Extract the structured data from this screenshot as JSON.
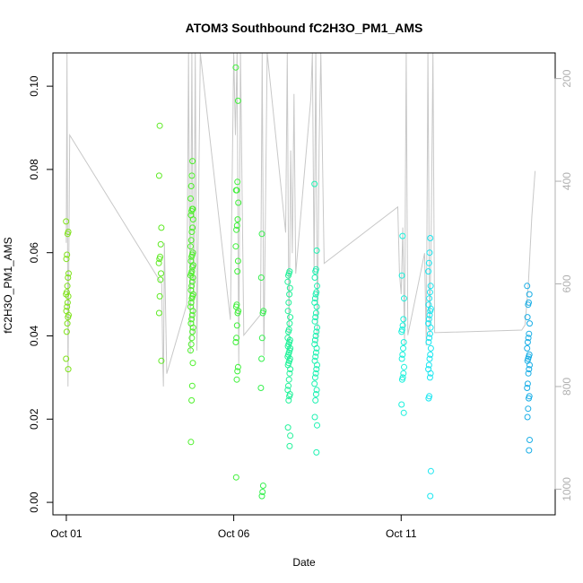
{
  "chart_data": {
    "type": "scatter",
    "title": "ATOM3 Southbound fC2H3O_PM1_AMS",
    "xlabel": "Date",
    "ylabel": "fC2H3O_PM1_AMS",
    "x_ticks": [
      {
        "label": "Oct 01",
        "day": 1
      },
      {
        "label": "Oct 06",
        "day": 6
      },
      {
        "label": "Oct 11",
        "day": 11
      }
    ],
    "y_ticks": [
      0.0,
      0.02,
      0.04,
      0.06,
      0.08,
      0.1
    ],
    "y_tick_labels": [
      "0.00",
      "0.02",
      "0.04",
      "0.06",
      "0.08",
      "0.10"
    ],
    "right_ticks": [
      200,
      400,
      600,
      800,
      1000
    ],
    "right_tick_labels": [
      "200",
      "400",
      "600",
      "800",
      "1000"
    ],
    "xlim": [
      0.6,
      15.6
    ],
    "ylim": [
      -0.003,
      0.108
    ],
    "right_lim": [
      1050,
      150
    ],
    "groups": [
      {
        "day": 1.03,
        "color": "#7fe21a",
        "values": [
          0.0675,
          0.065,
          0.0645,
          0.0595,
          0.0585,
          0.055,
          0.054,
          0.052,
          0.0505,
          0.05,
          0.0495,
          0.048,
          0.047,
          0.046,
          0.045,
          0.0445,
          0.043,
          0.041,
          0.0345,
          0.032
        ]
      },
      {
        "day": 3.8,
        "color": "#5fea24",
        "values": [
          0.0905,
          0.0785,
          0.066,
          0.062,
          0.059,
          0.0585,
          0.0575,
          0.055,
          0.0535,
          0.0495,
          0.0455,
          0.034
        ]
      },
      {
        "day": 4.75,
        "color": "#4ef02c",
        "values": [
          0.082,
          0.0785,
          0.076,
          0.073,
          0.0705,
          0.0705,
          0.07,
          0.069,
          0.068,
          0.066,
          0.065,
          0.063,
          0.0615,
          0.06,
          0.0595,
          0.059,
          0.058,
          0.057,
          0.0565,
          0.0555,
          0.055,
          0.0545,
          0.054,
          0.053,
          0.052,
          0.051,
          0.05,
          0.0495,
          0.049,
          0.048,
          0.047,
          0.046,
          0.045,
          0.044,
          0.043,
          0.042,
          0.041,
          0.0395,
          0.038,
          0.0365,
          0.0335,
          0.028,
          0.0245,
          0.0145
        ]
      },
      {
        "day": 6.1,
        "color": "#3ff03a",
        "values": [
          0.1045,
          0.0965,
          0.077,
          0.075,
          0.075,
          0.072,
          0.068,
          0.0665,
          0.0655,
          0.0615,
          0.058,
          0.0555,
          0.0475,
          0.047,
          0.046,
          0.0455,
          0.0425,
          0.0395,
          0.0385,
          0.0325,
          0.0315,
          0.0295,
          0.006
        ]
      },
      {
        "day": 6.85,
        "color": "#36f04e",
        "values": [
          0.0645,
          0.054,
          0.046,
          0.0455,
          0.0395,
          0.0345,
          0.0275,
          0.004,
          0.0025,
          0.0015
        ]
      },
      {
        "day": 7.65,
        "color": "#22f29a",
        "values": [
          0.0555,
          0.055,
          0.0545,
          0.053,
          0.0515,
          0.05,
          0.048,
          0.046,
          0.0445,
          0.043,
          0.0415,
          0.041,
          0.0395,
          0.039,
          0.0385,
          0.038,
          0.0375,
          0.037,
          0.0365,
          0.036,
          0.0355,
          0.035,
          0.0345,
          0.034,
          0.0335,
          0.033,
          0.032,
          0.031,
          0.0295,
          0.028,
          0.027,
          0.026,
          0.0255,
          0.0245,
          0.018,
          0.016,
          0.0135
        ]
      },
      {
        "day": 8.45,
        "color": "#1ef2b2",
        "values": [
          0.0765,
          0.0605,
          0.056,
          0.0555,
          0.054,
          0.052,
          0.0505,
          0.05,
          0.049,
          0.048,
          0.047,
          0.0455,
          0.0445,
          0.0435,
          0.042,
          0.041,
          0.04,
          0.039,
          0.038,
          0.037,
          0.036,
          0.035,
          0.034,
          0.033,
          0.032,
          0.031,
          0.03,
          0.0285,
          0.027,
          0.026,
          0.0245,
          0.0205,
          0.0185,
          0.012
        ]
      },
      {
        "day": 11.05,
        "color": "#1af0dc",
        "values": [
          0.064,
          0.0545,
          0.049,
          0.044,
          0.0425,
          0.0415,
          0.041,
          0.0385,
          0.037,
          0.0355,
          0.0345,
          0.0325,
          0.031,
          0.03,
          0.0295,
          0.0235,
          0.0215
        ]
      },
      {
        "day": 11.85,
        "color": "#1ae6f0",
        "values": [
          0.0635,
          0.06,
          0.0575,
          0.0555,
          0.052,
          0.0505,
          0.049,
          0.0475,
          0.0465,
          0.046,
          0.045,
          0.044,
          0.043,
          0.042,
          0.0405,
          0.0395,
          0.0385,
          0.037,
          0.0355,
          0.0345,
          0.033,
          0.032,
          0.031,
          0.03,
          0.0255,
          0.025,
          0.0075,
          0.0015
        ]
      },
      {
        "day": 14.8,
        "color": "#1aaee6",
        "values": [
          0.052,
          0.05,
          0.048,
          0.0475,
          0.0445,
          0.043,
          0.0405,
          0.0395,
          0.0385,
          0.037,
          0.0355,
          0.035,
          0.0345,
          0.034,
          0.033,
          0.032,
          0.031,
          0.0285,
          0.0275,
          0.0255,
          0.025,
          0.0225,
          0.0205,
          0.015,
          0.0125
        ]
      }
    ],
    "altitude_series": {
      "name": "",
      "x": [
        1.0,
        1.02,
        1.05,
        1.1,
        3.85,
        3.88,
        3.9,
        3.93,
        4.0,
        4.6,
        4.65,
        4.7,
        4.75,
        4.8,
        4.85,
        4.9,
        5.0,
        5.9,
        6.0,
        6.05,
        6.1,
        6.15,
        6.2,
        6.3,
        6.8,
        6.85,
        6.9,
        7.0,
        7.55,
        7.6,
        7.65,
        7.7,
        7.75,
        7.8,
        7.85,
        8.3,
        8.35,
        8.4,
        8.45,
        8.5,
        8.55,
        8.6,
        8.7,
        10.9,
        10.95,
        11.0,
        11.05,
        11.1,
        11.15,
        11.2,
        11.7,
        11.75,
        11.8,
        11.85,
        11.9,
        11.95,
        12.0,
        14.6,
        14.7,
        14.8,
        14.9,
        15.0
      ],
      "y": [
        520,
        150,
        800,
        310,
        600,
        750,
        800,
        520,
        775,
        640,
        150,
        735,
        150,
        700,
        150,
        730,
        150,
        670,
        150,
        310,
        150,
        760,
        150,
        700,
        660,
        150,
        740,
        150,
        500,
        150,
        720,
        340,
        540,
        230,
        580,
        240,
        150,
        580,
        150,
        720,
        330,
        150,
        560,
        450,
        580,
        620,
        490,
        720,
        150,
        700,
        540,
        720,
        150,
        700,
        480,
        150,
        695,
        690,
        680,
        600,
        470,
        380
      ]
    }
  }
}
